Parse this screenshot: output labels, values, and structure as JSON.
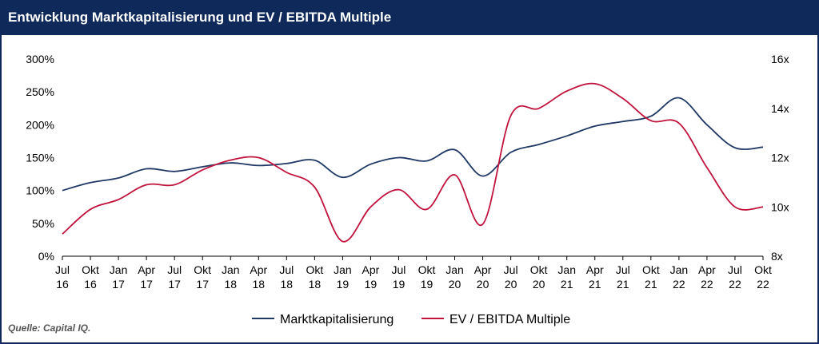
{
  "title": "Entwicklung Marktkapitalisierung und EV / EBITDA Multiple",
  "source": "Quelle: Capital IQ.",
  "colors": {
    "header_bg": "#0f2a5a",
    "series_market_cap": "#1f3864",
    "series_multiple": "#c0143c",
    "axis": "#000000"
  },
  "chart_data": {
    "type": "line",
    "x_labels": [
      [
        "Jul",
        "16"
      ],
      [
        "Okt",
        "16"
      ],
      [
        "Jan",
        "17"
      ],
      [
        "Apr",
        "17"
      ],
      [
        "Jul",
        "17"
      ],
      [
        "Okt",
        "17"
      ],
      [
        "Jan",
        "18"
      ],
      [
        "Apr",
        "18"
      ],
      [
        "Jul",
        "18"
      ],
      [
        "Okt",
        "18"
      ],
      [
        "Jan",
        "19"
      ],
      [
        "Apr",
        "19"
      ],
      [
        "Jul",
        "19"
      ],
      [
        "Okt",
        "19"
      ],
      [
        "Jan",
        "20"
      ],
      [
        "Apr",
        "20"
      ],
      [
        "Jul",
        "20"
      ],
      [
        "Okt",
        "20"
      ],
      [
        "Jan",
        "21"
      ],
      [
        "Apr",
        "21"
      ],
      [
        "Jul",
        "21"
      ],
      [
        "Okt",
        "21"
      ],
      [
        "Jan",
        "22"
      ],
      [
        "Apr",
        "22"
      ],
      [
        "Jul",
        "22"
      ],
      [
        "Okt",
        "22"
      ]
    ],
    "y_left": {
      "ticks": [
        "0%",
        "50%",
        "100%",
        "150%",
        "200%",
        "250%",
        "300%"
      ],
      "range": [
        0,
        300
      ]
    },
    "y_right": {
      "ticks": [
        "8x",
        "10x",
        "12x",
        "14x",
        "16x"
      ],
      "range": [
        8,
        16
      ]
    },
    "legend_position": "bottom-center",
    "grid": false,
    "series": [
      {
        "name": "Marktkapitalisierung",
        "axis": "left",
        "color": "#1f3864",
        "values": [
          100,
          112,
          119,
          133,
          129,
          136,
          142,
          138,
          141,
          146,
          120,
          140,
          150,
          145,
          162,
          122,
          158,
          170,
          183,
          198,
          205,
          213,
          241,
          200,
          165,
          166
        ]
      },
      {
        "name": "EV / EBITDA Multiple",
        "axis": "right",
        "color": "#c0143c",
        "values": [
          8.9,
          9.9,
          10.3,
          10.9,
          10.9,
          11.5,
          11.9,
          12.0,
          11.4,
          10.8,
          8.6,
          10.0,
          10.7,
          9.9,
          11.3,
          9.3,
          13.7,
          14.0,
          14.7,
          15.0,
          14.4,
          13.5,
          13.4,
          11.6,
          10.0,
          10.0
        ]
      }
    ]
  }
}
